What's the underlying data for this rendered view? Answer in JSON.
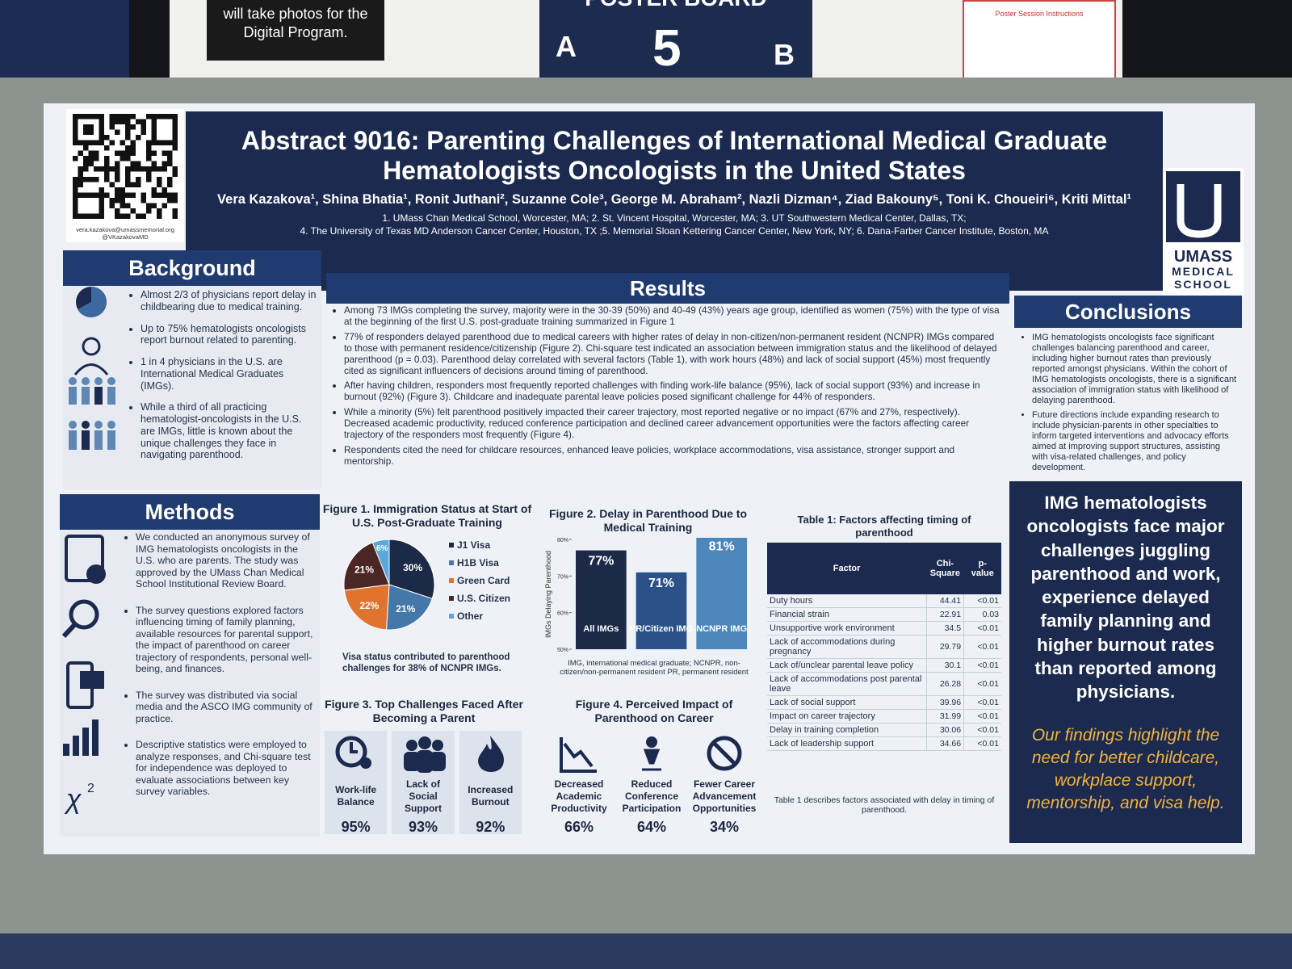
{
  "backdrop": {
    "sign": "will take photos for the Digital Program.",
    "board_title": "POSTER BOARD",
    "board_left": "A",
    "board_number": "5",
    "board_right": "B",
    "instructions_title": "Poster Session Instructions"
  },
  "header": {
    "email": "vera.kazakova@umassmemorial.org",
    "handle": "@VKazakovaMD",
    "title": "Abstract 9016: Parenting Challenges of International Medical Graduate Hematologists Oncologists in the United States",
    "authors": "Vera Kazakova¹, Shina Bhatia¹, Ronit Juthani², Suzanne Cole³, George M. Abraham², Nazli Dizman⁴, Ziad Bakouny⁵, Toni K. Choueiri⁶, Kriti Mittal¹",
    "affiliations": [
      "1. UMass Chan Medical School, Worcester, MA; 2. St. Vincent Hospital, Worcester, MA; 3. UT Southwestern Medical Center, Dallas, TX;",
      "4. The University of Texas MD Anderson Cancer Center, Houston, TX ;5. Memorial Sloan Kettering Cancer Center, New York, NY; 6. Dana-Farber Cancer Institute, Boston, MA"
    ],
    "logo": [
      "UMASS",
      "MEDICAL",
      "SCHOOL"
    ]
  },
  "background": {
    "heading": "Background",
    "items": [
      "Almost 2/3 of physicians report delay in childbearing due to medical training.",
      "Up to 75% hematologists oncologists report burnout related to parenting.",
      "1 in 4 physicians in the U.S. are International Medical Graduates (IMGs).",
      "While a third of all practicing hematologist-oncologists in the U.S. are IMGs, little is known about the unique challenges they face in navigating parenthood."
    ]
  },
  "methods": {
    "heading": "Methods",
    "items": [
      "We conducted an anonymous survey of IMG hematologists oncologists in the U.S. who are parents. The study was approved by the UMass Chan Medical School Institutional Review Board.",
      "The survey questions explored factors influencing timing of family planning, available resources for parental support, the impact of parenthood on career trajectory of respondents, personal well-being, and finances.",
      "The survey was distributed via social media and the ASCO IMG community of practice.",
      "Descriptive statistics were employed to analyze responses, and Chi-square test for independence was deployed to evaluate associations between key survey variables."
    ]
  },
  "results": {
    "heading": "Results",
    "bullets": [
      "Among 73 IMGs completing the survey, majority were in the 30-39 (50%) and 40-49 (43%) years age group, identified as women (75%) with the type of visa at the beginning of the first U.S. post-graduate training summarized in Figure 1",
      "77% of responders delayed parenthood due to medical careers with higher rates of delay in non-citizen/non-permanent resident (NCNPR) IMGs compared to those with permanent residence/citizenship (Figure 2). Chi-square test indicated an association between immigration status and the likelihood of delayed parenthood (p = 0.03). Parenthood delay correlated with several factors (Table 1), with work hours (48%) and lack of social support (45%) most frequently cited as significant influencers of decisions around timing of parenthood.",
      "After having children, responders most frequently reported challenges with finding work-life balance (95%), lack of social support (93%) and increase in burnout (92%) (Figure 3). Childcare and inadequate parental leave policies posed significant challenge for 44% of responders.",
      "While a minority (5%) felt parenthood positively impacted their career trajectory, most reported negative or no impact (67% and 27%, respectively). Decreased academic productivity, reduced conference participation and declined career advancement opportunities were the factors affecting career trajectory of the responders most frequently (Figure 4).",
      "Respondents cited the need for childcare resources, enhanced leave policies, workplace accommodations, visa assistance, stronger support and mentorship."
    ]
  },
  "figure1": {
    "type": "pie",
    "title": "Figure 1. Immigration Status at Start of U.S. Post-Graduate Training",
    "categories": [
      "J1 Visa",
      "H1B Visa",
      "Green Card",
      "U.S. Citizen",
      "Other"
    ],
    "values": [
      30,
      21,
      22,
      21,
      6
    ],
    "value_labels": [
      "30%",
      "21%",
      "22%",
      "21%",
      "6%"
    ],
    "colors": [
      "#1c2a48",
      "#4478a8",
      "#e0732e",
      "#4a2624",
      "#5aa8dc"
    ],
    "note": "Visa status contributed to parenthood challenges for 38% of NCNPR IMGs."
  },
  "figure2": {
    "type": "bar",
    "title": "Figure 2. Delay in Parenthood Due to Medical Training",
    "y_label": "IMGs Delaying Parenthood",
    "categories": [
      "All IMGs",
      "PR/Citizen IMG",
      "NCNPR IMG"
    ],
    "values": [
      77,
      71,
      81
    ],
    "value_labels": [
      "77%",
      "71%",
      "81%"
    ],
    "colors": [
      "#1c2a48",
      "#2b5288",
      "#4d86ba"
    ],
    "ylim": [
      50,
      80
    ],
    "yticks": [
      {
        "value": 50,
        "label": "50%"
      },
      {
        "value": 60,
        "label": "60%"
      },
      {
        "value": 70,
        "label": "70%"
      },
      {
        "value": 80,
        "label": "80%"
      }
    ],
    "note": "IMG, international medical graduate; NCNPR, non-citizen/non-permanent resident PR, permanent resident"
  },
  "table1": {
    "title": "Table 1: Factors affecting timing of parenthood",
    "columns": [
      "Factor",
      "Chi-Square",
      "p-value"
    ],
    "rows": [
      [
        "Duty hours",
        44.41,
        "<0.01"
      ],
      [
        "Financial strain",
        22.91,
        "0.03"
      ],
      [
        "Unsupportive work environment",
        34.5,
        "<0.01"
      ],
      [
        "Lack of accommodations during pregnancy",
        29.79,
        "<0.01"
      ],
      [
        "Lack of/unclear parental leave policy",
        30.1,
        "<0.01"
      ],
      [
        "Lack of accommodations post parental leave",
        26.28,
        "<0.01"
      ],
      [
        "Lack of social support",
        39.96,
        "<0.01"
      ],
      [
        "Impact on career trajectory",
        31.99,
        "<0.01"
      ],
      [
        "Delay in training completion",
        30.06,
        "<0.01"
      ],
      [
        "Lack of leadership support",
        34.66,
        "<0.01"
      ]
    ],
    "caption": "Table 1 describes factors associated with delay in timing of parenthood."
  },
  "figure3": {
    "title": "Figure 3. Top Challenges Faced After Becoming a Parent",
    "items": [
      {
        "label": "Work-life Balance",
        "value": "95%"
      },
      {
        "label": "Lack of Social Support",
        "value": "93%"
      },
      {
        "label": "Increased Burnout",
        "value": "92%"
      }
    ]
  },
  "figure4": {
    "title": "Figure 4. Perceived Impact of Parenthood on Career",
    "items": [
      {
        "label": "Decreased Academic Productivity",
        "value": "66%"
      },
      {
        "label": "Reduced Conference Participation",
        "value": "64%"
      },
      {
        "label": "Fewer Career Advancement Opportunities",
        "value": "34%"
      }
    ]
  },
  "conclusions": {
    "heading": "Conclusions",
    "items": [
      "IMG hematologists oncologists face significant challenges balancing parenthood and career, including higher burnout rates than previously reported amongst physicians. Within the cohort of IMG hematologists oncologists, there is a significant association of immigration status with likelihood of delaying parenthood.",
      "Future directions include expanding research to include physician-parents in other specialties to inform targeted interventions and advocacy efforts aimed at improving support structures, assisting with visa-related challenges, and policy development."
    ],
    "takeaway": "IMG hematologists oncologists face major challenges juggling parenthood and work, experience delayed family planning and higher burnout rates than reported among physicians.",
    "highlight": "Our findings highlight the need for better childcare, workplace support, mentorship, and visa help."
  }
}
